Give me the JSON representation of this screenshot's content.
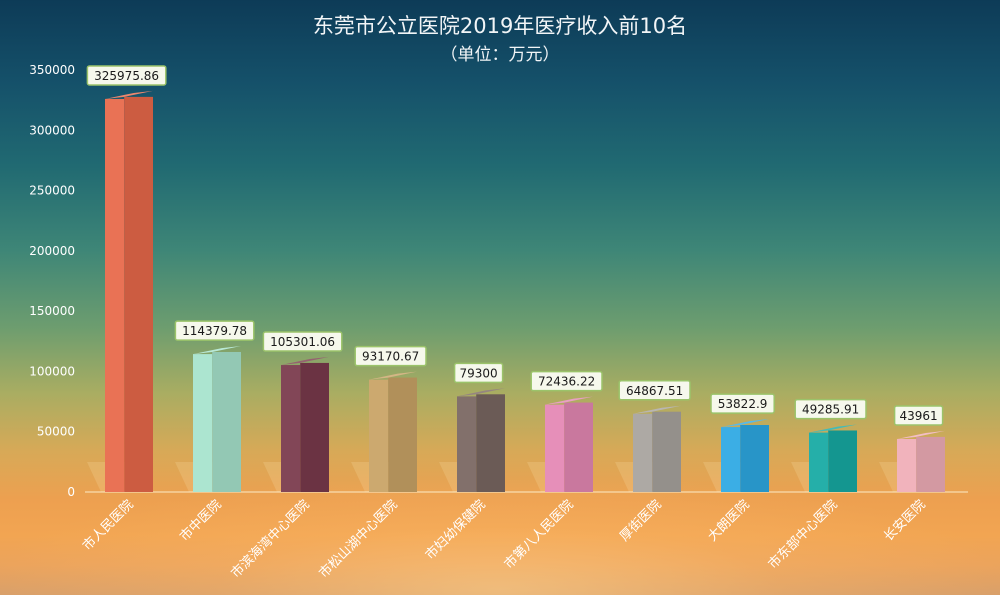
{
  "chart_data": {
    "type": "bar",
    "title": "东莞市公立医院2019年医疗收入前10名",
    "subtitle": "（单位：万元）",
    "xlabel": "",
    "ylabel": "",
    "ylim": [
      0,
      350000
    ],
    "yticks": [
      "0",
      "50000",
      "100000",
      "150000",
      "200000",
      "250000",
      "300000",
      "350000"
    ],
    "grid": false,
    "legend": "none",
    "categories": [
      "市人民医院",
      "市中医院",
      "市滨海湾中心医院",
      "市松山湖中心医院",
      "市妇幼保健院",
      "市第八人民医院",
      "厚街医院",
      "大朗医院",
      "市东部中心医院",
      "长安医院"
    ],
    "values": [
      325975.86,
      114379.78,
      105301.06,
      93170.67,
      79300,
      72436.22,
      64867.51,
      53822.9,
      49285.91,
      43961
    ],
    "value_labels": [
      "325975.86",
      "114379.78",
      "105301.06",
      "93170.67",
      "79300",
      "72436.22",
      "64867.51",
      "53822.9",
      "49285.91",
      "43961"
    ],
    "colors": [
      "#e8694a",
      "#a7e3cd",
      "#7a3a4c",
      "#c9a466",
      "#7a6762",
      "#e488b4",
      "#a8a49e",
      "#2ea9e3",
      "#17aaa4",
      "#f0aeb8"
    ]
  }
}
